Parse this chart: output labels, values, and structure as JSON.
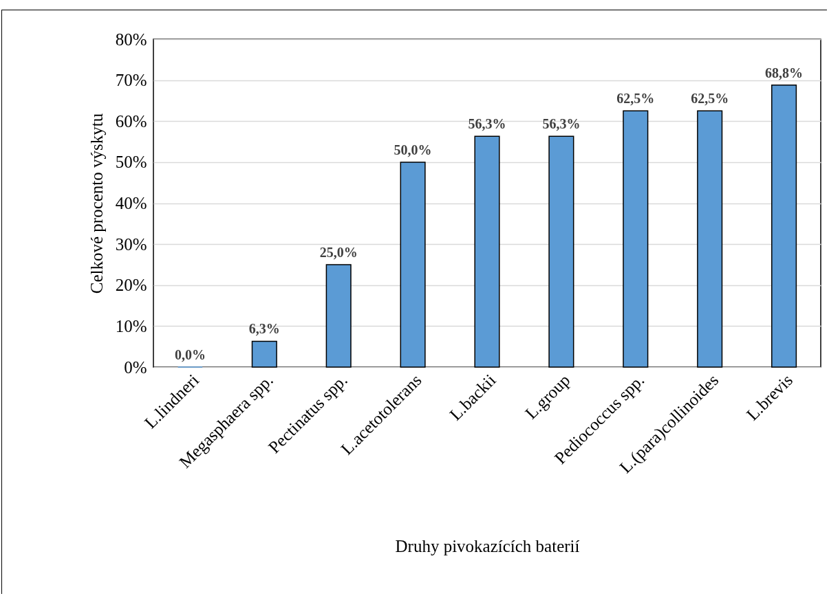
{
  "chart_data": {
    "type": "bar",
    "xlabel": "Druhy pivokazících baterií",
    "ylabel": "Celkové procento výskytu",
    "categories": [
      "L.lindneri",
      "Megasphaera spp.",
      "Pectinatus spp.",
      "L.acetotolerans",
      "L.backii",
      "L.group",
      "Pediococcus spp.",
      "L.(para)collinoides",
      "L.brevis"
    ],
    "values": [
      0,
      6.3,
      25,
      50,
      56.3,
      56.3,
      62.5,
      62.5,
      68.8
    ],
    "value_labels": [
      "0,0%",
      "6,3%",
      "25,0%",
      "50,0%",
      "56,3%",
      "56,3%",
      "62,5%",
      "62,5%",
      "68,8%"
    ],
    "color": "#5b9bd5",
    "ylim": [
      0,
      80
    ],
    "yticks": [
      {
        "value": 0,
        "label": "0%"
      },
      {
        "value": 10,
        "label": "10%"
      },
      {
        "value": 20,
        "label": "20%"
      },
      {
        "value": 30,
        "label": "30%"
      },
      {
        "value": 40,
        "label": "40%"
      },
      {
        "value": 50,
        "label": "50%"
      },
      {
        "value": 60,
        "label": "60%"
      },
      {
        "value": 70,
        "label": "70%"
      },
      {
        "value": 80,
        "label": "80%"
      }
    ],
    "grid": "y"
  }
}
